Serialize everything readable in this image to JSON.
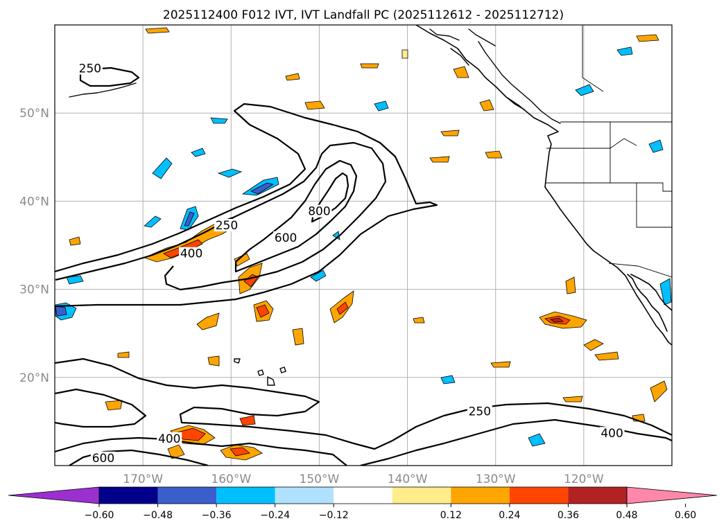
{
  "title": "2025112400 F012 IVT, IVT Landfall PC (2025112612 - 2025112712)",
  "map": {
    "lat_labels": [
      "50°N",
      "40°N",
      "30°N",
      "20°N"
    ],
    "lon_labels": [
      "170°W",
      "160°W",
      "150°W",
      "140°W",
      "130°W",
      "120°W"
    ],
    "lat_range": [
      10,
      60
    ],
    "lon_range": [
      -180,
      -110
    ],
    "gridline_color": "#b0b0b0",
    "contour_color": "#000000",
    "contour_labels": [
      {
        "text": "250",
        "lon": -176,
        "lat": 55
      },
      {
        "text": "250",
        "lon": -160.5,
        "lat": 37.2
      },
      {
        "text": "400",
        "lon": -164.5,
        "lat": 34.0
      },
      {
        "text": "600",
        "lon": -153.8,
        "lat": 35.8
      },
      {
        "text": "800",
        "lon": -150.0,
        "lat": 38.8
      },
      {
        "text": "250",
        "lon": -131.8,
        "lat": 16.1
      },
      {
        "text": "400",
        "lon": -116.8,
        "lat": 13.6
      },
      {
        "text": "400",
        "lon": -167.0,
        "lat": 13.0
      },
      {
        "text": "600",
        "lon": -174.5,
        "lat": 10.8
      }
    ]
  },
  "colorbar": {
    "ticks": [
      "−0.60",
      "−0.48",
      "−0.36",
      "−0.24",
      "−0.12",
      "0.12",
      "0.24",
      "0.36",
      "0.48",
      "0.60"
    ],
    "colors": [
      "#9b30d0",
      "#00008b",
      "#3a5fcd",
      "#00bfff",
      "#b0e2ff",
      "#ffffff",
      "#ffec8b",
      "#ffa500",
      "#ff4500",
      "#b22222",
      "#ff88aa"
    ]
  }
}
